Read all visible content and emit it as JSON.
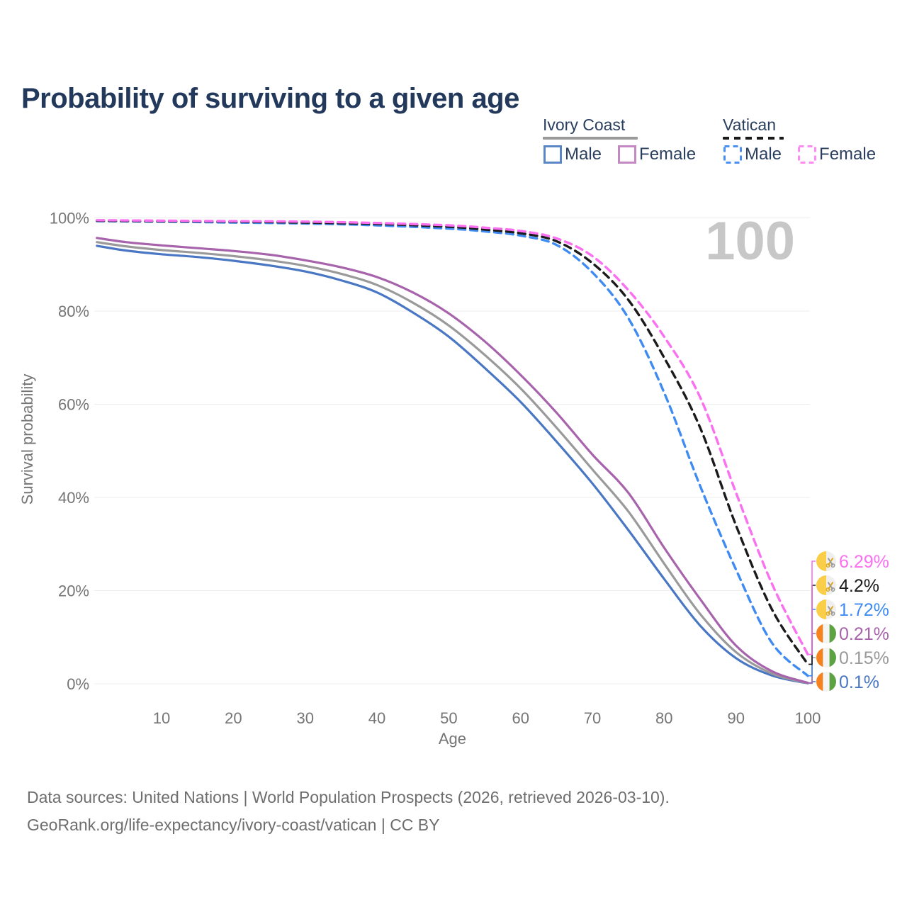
{
  "title": "Probability of surviving to a given age",
  "legend": {
    "groups": [
      {
        "name": "Ivory Coast",
        "line_style": "solid",
        "line_color": "#9a9a9a",
        "items": [
          {
            "label": "Male",
            "swatch_color": "#5b86c6",
            "swatch_style": "solid"
          },
          {
            "label": "Female",
            "swatch_color": "#c489c2",
            "swatch_style": "solid"
          }
        ]
      },
      {
        "name": "Vatican",
        "line_style": "dashed",
        "line_color": "#1b1b1b",
        "items": [
          {
            "label": "Male",
            "swatch_color": "#4a90f2",
            "swatch_style": "dashed"
          },
          {
            "label": "Female",
            "swatch_color": "#fc8cf4",
            "swatch_style": "dashed"
          }
        ]
      }
    ]
  },
  "chart_data": {
    "type": "line",
    "title": "Probability of surviving to a given age",
    "xlabel": "Age",
    "ylabel": "Survival probability",
    "xlim": [
      0,
      100
    ],
    "ylim": [
      0,
      100
    ],
    "x_ticks": [
      10,
      20,
      30,
      40,
      50,
      60,
      70,
      80,
      90,
      100
    ],
    "y_ticks": [
      0,
      20,
      40,
      60,
      80,
      100
    ],
    "grid": "horizontal",
    "legend_position": "top-right",
    "watermark": "100",
    "series": [
      {
        "id": "ivory-coast-male",
        "country": "Ivory Coast",
        "sex": "Male",
        "color": "#4a77c4",
        "dashed": false,
        "flag": "ivory-coast",
        "end_label": "0.1%",
        "label_rank": 5,
        "points": [
          [
            1,
            94.0
          ],
          [
            5,
            93.0
          ],
          [
            10,
            92.2
          ],
          [
            15,
            91.6
          ],
          [
            20,
            90.8
          ],
          [
            25,
            89.8
          ],
          [
            30,
            88.5
          ],
          [
            35,
            86.6
          ],
          [
            40,
            84.0
          ],
          [
            45,
            79.7
          ],
          [
            50,
            74.5
          ],
          [
            55,
            67.8
          ],
          [
            60,
            60.5
          ],
          [
            65,
            52.0
          ],
          [
            70,
            43.0
          ],
          [
            75,
            33.0
          ],
          [
            80,
            22.5
          ],
          [
            85,
            12.5
          ],
          [
            90,
            5.5
          ],
          [
            95,
            1.8
          ],
          [
            100,
            0.1
          ]
        ]
      },
      {
        "id": "ivory-coast-both",
        "country": "Ivory Coast",
        "sex": "Both sexes",
        "color": "#9a9a9a",
        "dashed": false,
        "flag": "ivory-coast",
        "end_label": "0.15%",
        "label_rank": 4,
        "points": [
          [
            1,
            94.8
          ],
          [
            5,
            93.9
          ],
          [
            10,
            93.1
          ],
          [
            15,
            92.5
          ],
          [
            20,
            91.8
          ],
          [
            25,
            90.9
          ],
          [
            30,
            89.7
          ],
          [
            35,
            88.0
          ],
          [
            40,
            85.6
          ],
          [
            45,
            81.8
          ],
          [
            50,
            76.9
          ],
          [
            55,
            70.6
          ],
          [
            60,
            63.4
          ],
          [
            65,
            55.0
          ],
          [
            70,
            46.0
          ],
          [
            75,
            37.0
          ],
          [
            80,
            25.8
          ],
          [
            85,
            15.0
          ],
          [
            90,
            6.8
          ],
          [
            95,
            2.2
          ],
          [
            100,
            0.15
          ]
        ]
      },
      {
        "id": "ivory-coast-female",
        "country": "Ivory Coast",
        "sex": "Female",
        "color": "#a763ab",
        "dashed": false,
        "flag": "ivory-coast",
        "end_label": "0.21%",
        "label_rank": 3,
        "points": [
          [
            1,
            95.7
          ],
          [
            5,
            94.8
          ],
          [
            10,
            94.1
          ],
          [
            15,
            93.5
          ],
          [
            20,
            92.9
          ],
          [
            25,
            92.1
          ],
          [
            30,
            90.9
          ],
          [
            35,
            89.4
          ],
          [
            40,
            87.3
          ],
          [
            45,
            84.0
          ],
          [
            50,
            79.5
          ],
          [
            55,
            73.5
          ],
          [
            60,
            66.3
          ],
          [
            65,
            58.2
          ],
          [
            70,
            49.2
          ],
          [
            75,
            41.0
          ],
          [
            80,
            29.2
          ],
          [
            85,
            18.2
          ],
          [
            90,
            8.2
          ],
          [
            95,
            2.7
          ],
          [
            100,
            0.21
          ]
        ]
      },
      {
        "id": "vatican-male",
        "country": "Vatican",
        "sex": "Male",
        "color": "#3f8bf2",
        "dashed": true,
        "flag": "vatican",
        "end_label": "1.72%",
        "label_rank": 2,
        "points": [
          [
            1,
            99.3
          ],
          [
            10,
            99.2
          ],
          [
            20,
            99.0
          ],
          [
            30,
            98.8
          ],
          [
            40,
            98.4
          ],
          [
            50,
            97.7
          ],
          [
            55,
            97.1
          ],
          [
            60,
            96.2
          ],
          [
            65,
            94.2
          ],
          [
            70,
            88.3
          ],
          [
            75,
            78.5
          ],
          [
            80,
            62.5
          ],
          [
            85,
            42.5
          ],
          [
            90,
            24.5
          ],
          [
            95,
            8.8
          ],
          [
            100,
            1.72
          ]
        ]
      },
      {
        "id": "vatican-both",
        "country": "Vatican",
        "sex": "Both sexes",
        "color": "#1b1b1b",
        "dashed": true,
        "flag": "vatican",
        "end_label": "4.2%",
        "label_rank": 1,
        "points": [
          [
            1,
            99.4
          ],
          [
            10,
            99.3
          ],
          [
            20,
            99.2
          ],
          [
            30,
            99.0
          ],
          [
            40,
            98.7
          ],
          [
            50,
            98.1
          ],
          [
            55,
            97.5
          ],
          [
            60,
            96.7
          ],
          [
            65,
            95.0
          ],
          [
            70,
            90.3
          ],
          [
            75,
            82.4
          ],
          [
            80,
            70.0
          ],
          [
            85,
            55.0
          ],
          [
            90,
            34.0
          ],
          [
            95,
            16.0
          ],
          [
            100,
            4.2
          ]
        ]
      },
      {
        "id": "vatican-female",
        "country": "Vatican",
        "sex": "Female",
        "color": "#fa70f0",
        "dashed": true,
        "flag": "vatican",
        "end_label": "6.29%",
        "label_rank": 0,
        "points": [
          [
            1,
            99.5
          ],
          [
            10,
            99.4
          ],
          [
            20,
            99.3
          ],
          [
            30,
            99.2
          ],
          [
            40,
            98.9
          ],
          [
            50,
            98.4
          ],
          [
            55,
            97.9
          ],
          [
            60,
            97.2
          ],
          [
            65,
            95.6
          ],
          [
            70,
            91.8
          ],
          [
            75,
            84.5
          ],
          [
            80,
            74.5
          ],
          [
            85,
            61.5
          ],
          [
            90,
            41.0
          ],
          [
            95,
            21.5
          ],
          [
            100,
            6.29
          ]
        ]
      }
    ]
  },
  "footer": {
    "line1": "Data sources: United Nations | World Population Prospects (2026, retrieved 2026-03-10).",
    "line2": "GeoRank.org/life-expectancy/ivory-coast/vatican | CC BY"
  }
}
